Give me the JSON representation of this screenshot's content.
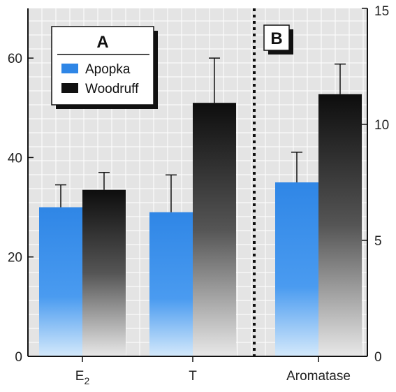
{
  "chart_data": {
    "type": "bar",
    "panels": [
      {
        "label": "A",
        "axis": "left",
        "ylim": [
          0,
          70
        ],
        "yticks": [
          0,
          20,
          40,
          60
        ],
        "categories": [
          "E",
          "T"
        ],
        "category_subscripts": [
          "2",
          ""
        ],
        "series": [
          {
            "name": "Apopka",
            "values": [
              30,
              29
            ],
            "errors": [
              4.5,
              7.5
            ]
          },
          {
            "name": "Woodruff",
            "values": [
              33.5,
              51
            ],
            "errors": [
              3.5,
              9
            ]
          }
        ]
      },
      {
        "label": "B",
        "axis": "right",
        "ylim": [
          0,
          15
        ],
        "yticks": [
          0,
          5,
          10,
          15
        ],
        "categories": [
          "Aromatase"
        ],
        "category_subscripts": [
          ""
        ],
        "series": [
          {
            "name": "Apopka",
            "values": [
              7.5
            ],
            "errors": [
              1.3
            ]
          },
          {
            "name": "Woodruff",
            "values": [
              11.3
            ],
            "errors": [
              1.3
            ]
          }
        ]
      }
    ],
    "legend": {
      "position": "top-left",
      "entries": [
        "Apopka",
        "Woodruff"
      ]
    },
    "grid": true,
    "colors": {
      "Apopka": "#2f86e6",
      "Woodruff": "#111111",
      "plot_bg": "#e4e4e4",
      "grid": "#ffffff"
    }
  }
}
